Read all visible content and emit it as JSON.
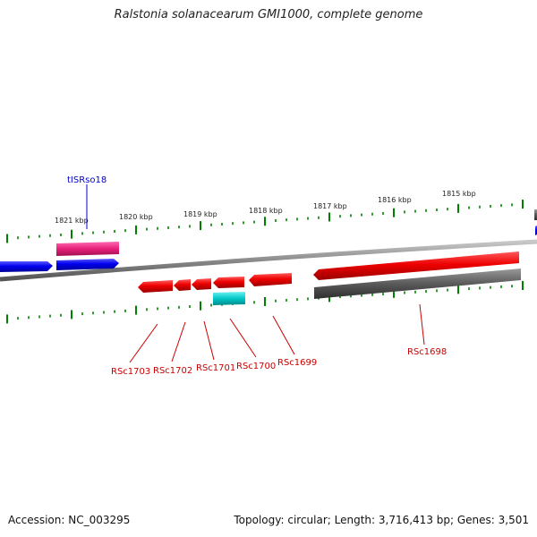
{
  "title": "Ralstonia solanacearum GMI1000, complete genome",
  "footer": {
    "accession": "Accession: NC_003295",
    "topology": "Topology: circular; Length: 3,716,413 bp; Genes: 3,501"
  },
  "colors": {
    "backbone": "#7f7f7f",
    "cds": "#ee0000",
    "trna": "#ff1493",
    "mobile": "#0000ee",
    "misc": "#00c8c8",
    "gene": "#5a5a5a",
    "ticks": "#008000",
    "label_red": "#cc0000",
    "label_blue": "#0000cc"
  },
  "scale_labels": [
    "1821 kbp",
    "1820 kbp",
    "1819 kbp",
    "1818 kbp",
    "1817 kbp",
    "1816 kbp",
    "1815 kbp"
  ],
  "feature_labels": {
    "tISRso18": "tISRso18",
    "RSc1703": "RSc1703",
    "RSc1702": "RSc1702",
    "RSc1701": "RSc1701",
    "RSc1700": "RSc1700",
    "RSc1699": "RSc1699",
    "RSc1698": "RSc1698"
  }
}
